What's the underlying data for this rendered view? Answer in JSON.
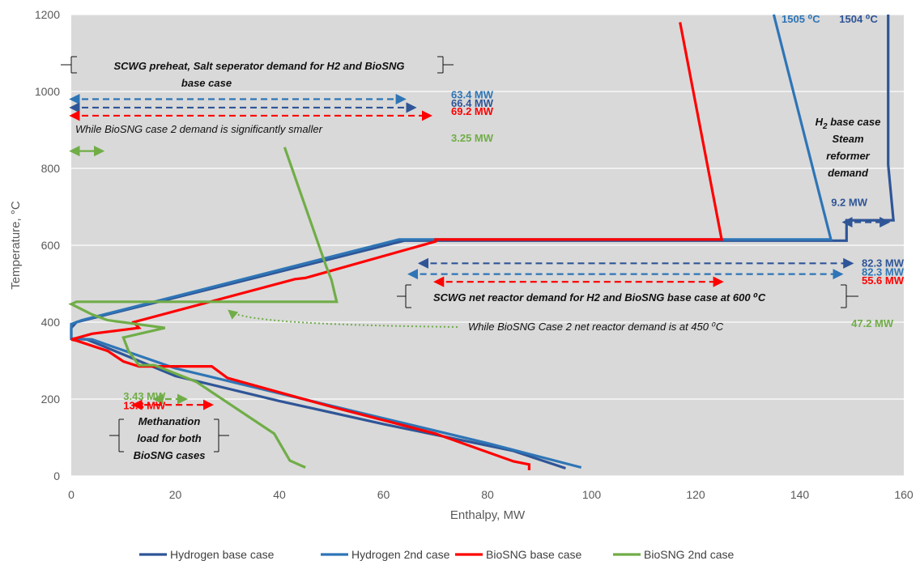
{
  "chart_data": {
    "type": "line",
    "xlabel": "Enthalpy, MW",
    "ylabel": "Temperature, °C",
    "xlim": [
      0,
      160
    ],
    "ylim": [
      0,
      1200
    ],
    "x_ticks": [
      "0",
      "20",
      "40",
      "60",
      "80",
      "100",
      "120",
      "140",
      "160"
    ],
    "y_ticks": [
      "0",
      "200",
      "400",
      "600",
      "800",
      "1000",
      "1200"
    ],
    "grid": true,
    "legend_position": "bottom",
    "series": [
      {
        "name": "Hydrogen base case",
        "color": "#2F5597",
        "points": [
          [
            95,
            20
          ],
          [
            85,
            65
          ],
          [
            60,
            135
          ],
          [
            40,
            195
          ],
          [
            20,
            260
          ],
          [
            3,
            355
          ],
          [
            0,
            357
          ],
          [
            0,
            385
          ],
          [
            1,
            400
          ],
          [
            64,
            612
          ],
          [
            149,
            612
          ],
          [
            149,
            665
          ],
          [
            158,
            665
          ],
          [
            157,
            810
          ],
          [
            157,
            1200
          ]
        ]
      },
      {
        "name": "Hydrogen 2nd case",
        "color": "#2E75B6",
        "points": [
          [
            98,
            22
          ],
          [
            80,
            85
          ],
          [
            60,
            150
          ],
          [
            40,
            215
          ],
          [
            20,
            280
          ],
          [
            4,
            355
          ],
          [
            0,
            357
          ],
          [
            0,
            395
          ],
          [
            2,
            405
          ],
          [
            63,
            615
          ],
          [
            146,
            615
          ],
          [
            135,
            1200
          ]
        ]
      },
      {
        "name": "BioSNG base case",
        "color": "#FF0000",
        "points": [
          [
            88,
            15
          ],
          [
            88,
            30
          ],
          [
            85,
            38
          ],
          [
            70,
            110
          ],
          [
            50,
            180
          ],
          [
            30,
            255
          ],
          [
            27,
            285
          ],
          [
            13,
            285
          ],
          [
            10,
            298
          ],
          [
            7,
            325
          ],
          [
            1,
            352
          ],
          [
            0,
            355
          ],
          [
            4,
            370
          ],
          [
            13,
            385
          ],
          [
            12,
            400
          ],
          [
            43,
            512
          ],
          [
            45,
            515
          ],
          [
            70,
            610
          ],
          [
            70,
            615
          ],
          [
            125,
            615
          ],
          [
            117,
            1180
          ]
        ]
      },
      {
        "name": "BioSNG 2nd case",
        "color": "#70AD47",
        "points": [
          [
            45,
            22
          ],
          [
            44,
            28
          ],
          [
            42,
            40
          ],
          [
            39,
            110
          ],
          [
            24,
            245
          ],
          [
            16,
            288
          ],
          [
            13,
            288
          ],
          [
            11,
            325
          ],
          [
            10,
            360
          ],
          [
            18,
            385
          ],
          [
            7,
            405
          ],
          [
            4,
            420
          ],
          [
            0,
            447
          ],
          [
            1,
            453
          ],
          [
            51,
            453
          ],
          [
            50,
            510
          ],
          [
            49,
            545
          ],
          [
            41,
            855
          ]
        ]
      }
    ],
    "annotations": {
      "labels": [
        {
          "text": "1505 ⁰C",
          "x": 136.5,
          "y": 1190,
          "color": "#2E75B6"
        },
        {
          "text": "1504 ⁰C",
          "x": 155,
          "y": 1190,
          "color": "#2F5597"
        },
        {
          "text": "63.4 MW",
          "x": 73,
          "y": 993,
          "color": "#2E75B6"
        },
        {
          "text": "66.4 MW",
          "x": 73,
          "y": 971,
          "color": "#2F5597"
        },
        {
          "text": "69.2 MW",
          "x": 73,
          "y": 949,
          "color": "#FF0000"
        },
        {
          "text": "3.25 MW",
          "x": 73,
          "y": 880,
          "color": "#70AD47"
        },
        {
          "text": "9.2 MW",
          "x": 153,
          "y": 713,
          "color": "#2F5597"
        },
        {
          "text": "82.3 MW",
          "x": 160,
          "y": 555,
          "color": "#2F5597"
        },
        {
          "text": "82.3 MW",
          "x": 160,
          "y": 532,
          "color": "#2E75B6"
        },
        {
          "text": "55.6 MW",
          "x": 160,
          "y": 510,
          "color": "#FF0000"
        },
        {
          "text": "47.2 MW",
          "x": 158,
          "y": 398,
          "color": "#70AD47"
        },
        {
          "text": "3.43 MW",
          "x": 10,
          "y": 208,
          "color": "#70AD47"
        },
        {
          "text": "13.8 MW",
          "x": 10,
          "y": 184,
          "color": "#FF0000"
        }
      ],
      "notes": {
        "preheat_1": "SCWG preheat, Salt seperator demand for H2 and BioSNG",
        "preheat_2": "base case",
        "biosng2_preheat": "While BioSNG case 2 demand is significantly smaller",
        "reactor": "SCWG net reactor demand  for H2 and BioSNG base case at 600 ⁰C",
        "biosng2_reactor": "While BioSNG Case 2 net reactor demand is at 450 ⁰C",
        "methanation_1": "Methanation",
        "methanation_2": "load for both",
        "methanation_3": "BioSNG cases",
        "h2_1": "H",
        "h2_sub": "2",
        "h2_1b": " base case",
        "h2_2": "Steam",
        "h2_3": "reformer",
        "h2_4": "demand"
      },
      "arrows": [
        {
          "x1": 0,
          "x2": 64,
          "y": 980,
          "color": "#2E75B6"
        },
        {
          "x1": 0,
          "x2": 66,
          "y": 958,
          "color": "#2F5597"
        },
        {
          "x1": 0,
          "x2": 69,
          "y": 937,
          "color": "#FF0000"
        },
        {
          "x1": 0,
          "x2": 6,
          "y": 845,
          "color": "#70AD47",
          "solid": true
        },
        {
          "x1": 148.5,
          "x2": 157,
          "y": 660,
          "color": "#2F5597"
        },
        {
          "x1": 67,
          "x2": 150,
          "y": 553,
          "color": "#2F5597"
        },
        {
          "x1": 65,
          "x2": 148,
          "y": 525,
          "color": "#2E75B6"
        },
        {
          "x1": 70,
          "x2": 125,
          "y": 505,
          "color": "#FF0000"
        },
        {
          "x1": 12,
          "x2": 27,
          "y": 185,
          "color": "#FF0000"
        },
        {
          "x1": 16,
          "x2": 22,
          "y": 200,
          "color": "#70AD47"
        }
      ]
    }
  }
}
